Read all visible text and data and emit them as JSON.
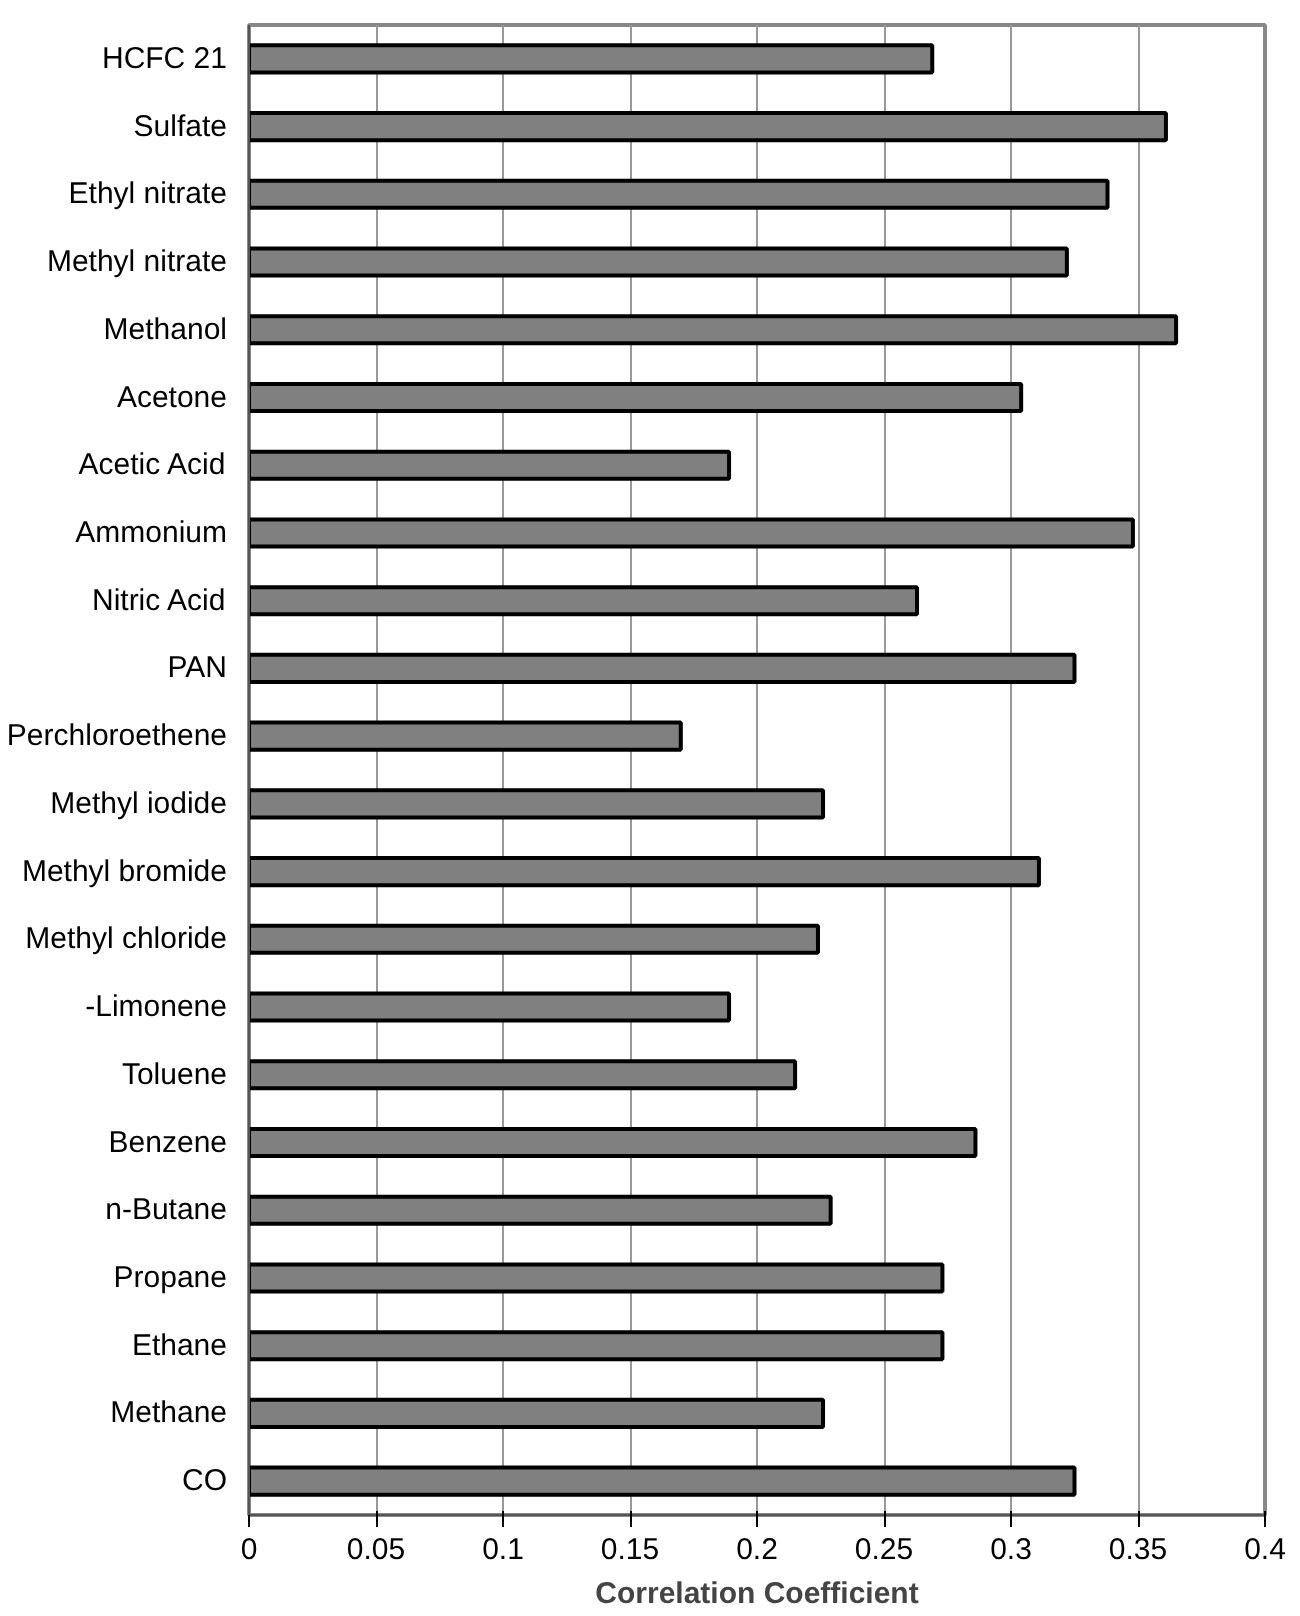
{
  "chart_data": {
    "type": "bar",
    "orientation": "horizontal",
    "xlabel": "Correlation Coefficient",
    "categories": [
      "HCFC 21",
      "Sulfate",
      "Ethyl nitrate",
      "Methyl nitrate",
      "Methanol",
      "Acetone",
      "Acetic Acid",
      "Ammonium",
      "Nitric Acid",
      "PAN",
      "Perchloroethene",
      "Methyl iodide",
      "Methyl bromide",
      "Methyl chloride",
      "-Limonene",
      "Toluene",
      "Benzene",
      "n-Butane",
      "Propane",
      "Ethane",
      "Methane",
      "CO"
    ],
    "values": [
      0.269,
      0.361,
      0.338,
      0.322,
      0.365,
      0.304,
      0.189,
      0.348,
      0.263,
      0.325,
      0.17,
      0.226,
      0.311,
      0.224,
      0.189,
      0.215,
      0.286,
      0.229,
      0.273,
      0.273,
      0.226,
      0.325
    ],
    "color": "#808080",
    "xlim": [
      0,
      0.4
    ],
    "xticks": [
      0,
      0.05,
      0.1,
      0.15,
      0.2,
      0.25,
      0.3,
      0.35,
      0.4
    ],
    "grid": "x"
  }
}
